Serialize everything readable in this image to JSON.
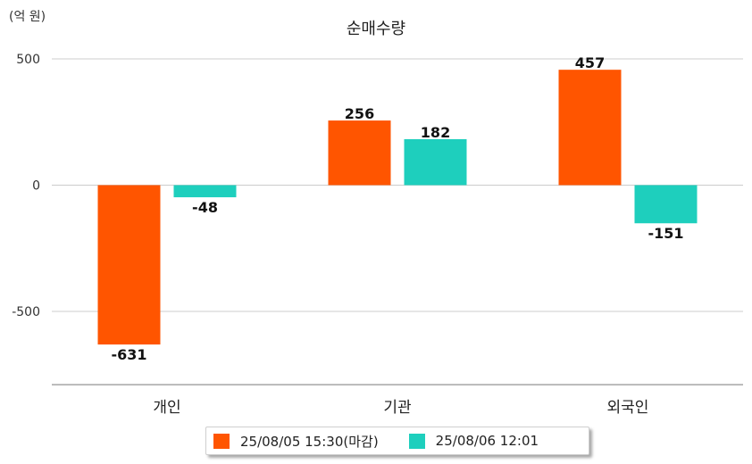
{
  "unit_label": "(억 원)",
  "chart_data": {
    "type": "bar",
    "title": "순매수량",
    "xlabel": "",
    "ylabel": "",
    "ylim": [
      -790,
      500
    ],
    "yticks": [
      500,
      0,
      -500
    ],
    "grid": true,
    "legend_position": "bottom",
    "categories": [
      "개인",
      "기관",
      "외국인"
    ],
    "series": [
      {
        "name": "25/08/05 15:30(마감)",
        "color": "#ff5500",
        "values": [
          -631,
          256,
          457
        ]
      },
      {
        "name": "25/08/06 12:01",
        "color": "#1ecfbd",
        "values": [
          -48,
          182,
          -151
        ]
      }
    ]
  }
}
